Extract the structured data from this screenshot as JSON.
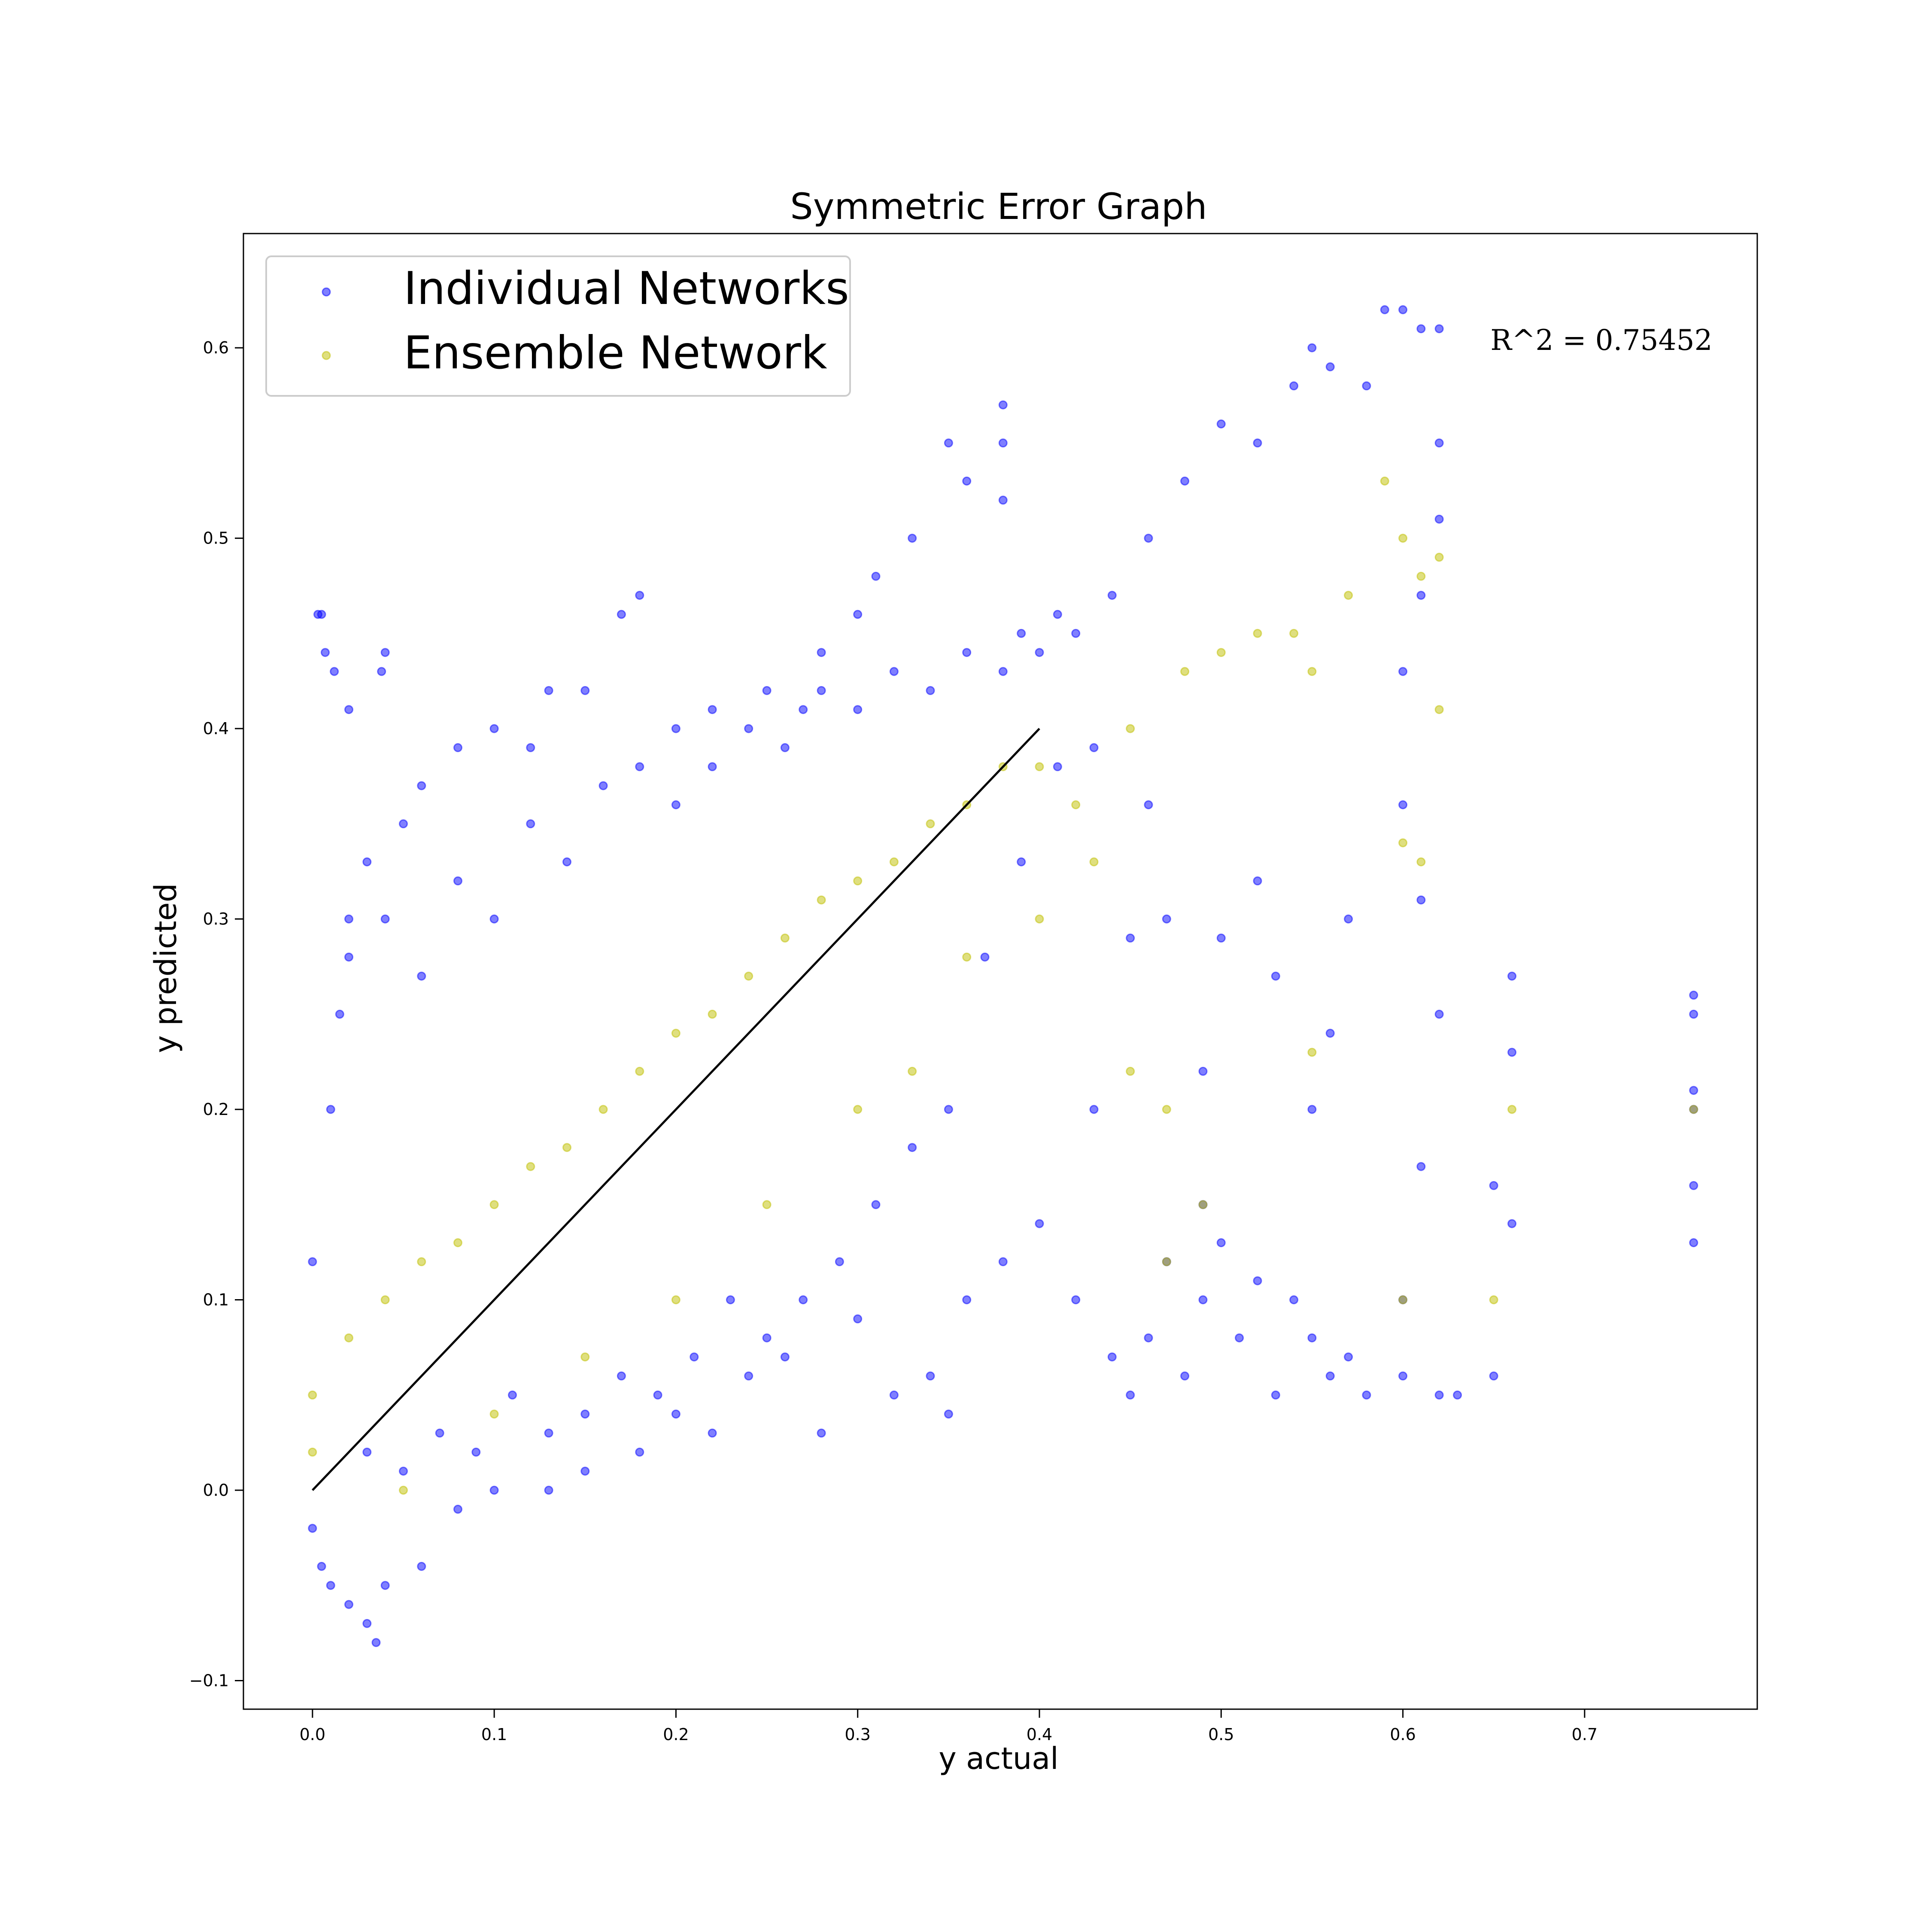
{
  "chart_data": {
    "type": "scatter",
    "title": "Symmetric Error Graph",
    "xlabel": "y actual",
    "ylabel": "y predicted",
    "xlim": [
      -0.038,
      0.795
    ],
    "ylim": [
      -0.115,
      0.66
    ],
    "x_ticks": [
      0.0,
      0.1,
      0.2,
      0.3,
      0.4,
      0.5,
      0.6,
      0.7
    ],
    "x_tick_labels": [
      "0.0",
      "0.1",
      "0.2",
      "0.3",
      "0.4",
      "0.5",
      "0.6",
      "0.7"
    ],
    "y_ticks": [
      -0.1,
      0.0,
      0.1,
      0.2,
      0.3,
      0.4,
      0.5,
      0.6
    ],
    "y_tick_labels": [
      "−0.1",
      "0.0",
      "0.1",
      "0.2",
      "0.3",
      "0.4",
      "0.5",
      "0.6"
    ],
    "grid": false,
    "legend_position": "top-left",
    "annotation": "R^2 = 0.75452",
    "identity_line": {
      "x": [
        0.0,
        0.4
      ],
      "y": [
        0.0,
        0.4
      ],
      "color": "#000000"
    },
    "series": [
      {
        "name": "Individual Networks",
        "color": "#0000ff",
        "alpha": 0.5,
        "points": [
          [
            0.003,
            0.46
          ],
          [
            0.005,
            0.46
          ],
          [
            0.007,
            0.44
          ],
          [
            0.012,
            0.43
          ],
          [
            0.04,
            0.44
          ],
          [
            0.038,
            0.43
          ],
          [
            0.02,
            0.41
          ],
          [
            0.0,
            0.12
          ],
          [
            0.01,
            0.2
          ],
          [
            0.015,
            0.25
          ],
          [
            0.02,
            0.3
          ],
          [
            0.03,
            0.33
          ],
          [
            0.05,
            0.35
          ],
          [
            0.06,
            0.37
          ],
          [
            0.08,
            0.39
          ],
          [
            0.1,
            0.4
          ],
          [
            0.12,
            0.39
          ],
          [
            0.13,
            0.42
          ],
          [
            0.15,
            0.42
          ],
          [
            0.17,
            0.46
          ],
          [
            0.18,
            0.47
          ],
          [
            0.2,
            0.4
          ],
          [
            0.22,
            0.41
          ],
          [
            0.25,
            0.42
          ],
          [
            0.27,
            0.41
          ],
          [
            0.28,
            0.44
          ],
          [
            0.3,
            0.46
          ],
          [
            0.31,
            0.48
          ],
          [
            0.33,
            0.5
          ],
          [
            0.35,
            0.55
          ],
          [
            0.36,
            0.53
          ],
          [
            0.38,
            0.57
          ],
          [
            0.38,
            0.55
          ],
          [
            0.38,
            0.52
          ],
          [
            0.4,
            0.44
          ],
          [
            0.42,
            0.45
          ],
          [
            0.44,
            0.47
          ],
          [
            0.46,
            0.5
          ],
          [
            0.48,
            0.53
          ],
          [
            0.5,
            0.56
          ],
          [
            0.52,
            0.55
          ],
          [
            0.54,
            0.58
          ],
          [
            0.55,
            0.6
          ],
          [
            0.56,
            0.59
          ],
          [
            0.58,
            0.58
          ],
          [
            0.59,
            0.62
          ],
          [
            0.6,
            0.62
          ],
          [
            0.61,
            0.61
          ],
          [
            0.62,
            0.61
          ],
          [
            0.62,
            0.55
          ],
          [
            0.62,
            0.51
          ],
          [
            0.61,
            0.47
          ],
          [
            0.6,
            0.43
          ],
          [
            0.6,
            0.36
          ],
          [
            0.61,
            0.31
          ],
          [
            0.62,
            0.25
          ],
          [
            0.57,
            0.3
          ],
          [
            0.56,
            0.24
          ],
          [
            0.55,
            0.2
          ],
          [
            0.53,
            0.27
          ],
          [
            0.52,
            0.32
          ],
          [
            0.5,
            0.29
          ],
          [
            0.49,
            0.22
          ],
          [
            0.49,
            0.15
          ],
          [
            0.49,
            0.1
          ],
          [
            0.5,
            0.13
          ],
          [
            0.51,
            0.08
          ],
          [
            0.52,
            0.11
          ],
          [
            0.53,
            0.05
          ],
          [
            0.54,
            0.1
          ],
          [
            0.55,
            0.08
          ],
          [
            0.56,
            0.06
          ],
          [
            0.57,
            0.07
          ],
          [
            0.58,
            0.05
          ],
          [
            0.6,
            0.06
          ],
          [
            0.6,
            0.1
          ],
          [
            0.61,
            0.17
          ],
          [
            0.62,
            0.05
          ],
          [
            0.63,
            0.05
          ],
          [
            0.65,
            0.06
          ],
          [
            0.65,
            0.16
          ],
          [
            0.66,
            0.27
          ],
          [
            0.66,
            0.23
          ],
          [
            0.66,
            0.14
          ],
          [
            0.76,
            0.26
          ],
          [
            0.76,
            0.25
          ],
          [
            0.76,
            0.21
          ],
          [
            0.76,
            0.2
          ],
          [
            0.76,
            0.16
          ],
          [
            0.76,
            0.13
          ],
          [
            0.0,
            -0.02
          ],
          [
            0.005,
            -0.04
          ],
          [
            0.01,
            -0.05
          ],
          [
            0.02,
            -0.06
          ],
          [
            0.03,
            -0.07
          ],
          [
            0.035,
            -0.08
          ],
          [
            0.04,
            -0.05
          ],
          [
            0.06,
            -0.04
          ],
          [
            0.08,
            -0.01
          ],
          [
            0.1,
            0.0
          ],
          [
            0.13,
            0.0
          ],
          [
            0.15,
            0.01
          ],
          [
            0.18,
            0.02
          ],
          [
            0.2,
            0.04
          ],
          [
            0.22,
            0.03
          ],
          [
            0.24,
            0.06
          ],
          [
            0.26,
            0.07
          ],
          [
            0.28,
            0.03
          ],
          [
            0.3,
            0.09
          ],
          [
            0.32,
            0.05
          ],
          [
            0.34,
            0.06
          ],
          [
            0.35,
            0.04
          ],
          [
            0.36,
            0.1
          ],
          [
            0.38,
            0.12
          ],
          [
            0.4,
            0.14
          ],
          [
            0.42,
            0.1
          ],
          [
            0.44,
            0.07
          ],
          [
            0.45,
            0.05
          ],
          [
            0.46,
            0.08
          ],
          [
            0.47,
            0.12
          ],
          [
            0.48,
            0.06
          ],
          [
            0.43,
            0.2
          ],
          [
            0.45,
            0.29
          ],
          [
            0.47,
            0.3
          ],
          [
            0.46,
            0.36
          ],
          [
            0.43,
            0.39
          ],
          [
            0.41,
            0.38
          ],
          [
            0.39,
            0.33
          ],
          [
            0.37,
            0.28
          ],
          [
            0.35,
            0.2
          ],
          [
            0.33,
            0.18
          ],
          [
            0.31,
            0.15
          ],
          [
            0.29,
            0.12
          ],
          [
            0.27,
            0.1
          ],
          [
            0.25,
            0.08
          ],
          [
            0.23,
            0.1
          ],
          [
            0.21,
            0.07
          ],
          [
            0.19,
            0.05
          ],
          [
            0.17,
            0.06
          ],
          [
            0.15,
            0.04
          ],
          [
            0.13,
            0.03
          ],
          [
            0.11,
            0.05
          ],
          [
            0.09,
            0.02
          ],
          [
            0.07,
            0.03
          ],
          [
            0.05,
            0.01
          ],
          [
            0.03,
            0.02
          ],
          [
            0.02,
            0.28
          ],
          [
            0.04,
            0.3
          ],
          [
            0.06,
            0.27
          ],
          [
            0.08,
            0.32
          ],
          [
            0.1,
            0.3
          ],
          [
            0.12,
            0.35
          ],
          [
            0.14,
            0.33
          ],
          [
            0.16,
            0.37
          ],
          [
            0.18,
            0.38
          ],
          [
            0.2,
            0.36
          ],
          [
            0.22,
            0.38
          ],
          [
            0.24,
            0.4
          ],
          [
            0.26,
            0.39
          ],
          [
            0.28,
            0.42
          ],
          [
            0.3,
            0.41
          ],
          [
            0.32,
            0.43
          ],
          [
            0.34,
            0.42
          ],
          [
            0.36,
            0.44
          ],
          [
            0.38,
            0.43
          ],
          [
            0.39,
            0.45
          ],
          [
            0.41,
            0.46
          ]
        ]
      },
      {
        "name": "Ensemble Network",
        "color": "#bfbf00",
        "alpha": 0.5,
        "points": [
          [
            0.0,
            0.05
          ],
          [
            0.0,
            0.02
          ],
          [
            0.02,
            0.08
          ],
          [
            0.04,
            0.1
          ],
          [
            0.06,
            0.12
          ],
          [
            0.08,
            0.13
          ],
          [
            0.1,
            0.15
          ],
          [
            0.12,
            0.17
          ],
          [
            0.14,
            0.18
          ],
          [
            0.16,
            0.2
          ],
          [
            0.18,
            0.22
          ],
          [
            0.2,
            0.24
          ],
          [
            0.22,
            0.25
          ],
          [
            0.24,
            0.27
          ],
          [
            0.26,
            0.29
          ],
          [
            0.28,
            0.31
          ],
          [
            0.3,
            0.32
          ],
          [
            0.32,
            0.33
          ],
          [
            0.34,
            0.35
          ],
          [
            0.36,
            0.36
          ],
          [
            0.38,
            0.38
          ],
          [
            0.4,
            0.38
          ],
          [
            0.42,
            0.36
          ],
          [
            0.45,
            0.4
          ],
          [
            0.48,
            0.43
          ],
          [
            0.5,
            0.44
          ],
          [
            0.52,
            0.45
          ],
          [
            0.54,
            0.45
          ],
          [
            0.55,
            0.43
          ],
          [
            0.57,
            0.47
          ],
          [
            0.59,
            0.53
          ],
          [
            0.6,
            0.5
          ],
          [
            0.61,
            0.48
          ],
          [
            0.62,
            0.49
          ],
          [
            0.62,
            0.41
          ],
          [
            0.6,
            0.34
          ],
          [
            0.61,
            0.33
          ],
          [
            0.55,
            0.23
          ],
          [
            0.65,
            0.1
          ],
          [
            0.66,
            0.2
          ],
          [
            0.76,
            0.2
          ],
          [
            0.6,
            0.1
          ],
          [
            0.05,
            0.0
          ],
          [
            0.1,
            0.04
          ],
          [
            0.15,
            0.07
          ],
          [
            0.2,
            0.1
          ],
          [
            0.25,
            0.15
          ],
          [
            0.3,
            0.2
          ],
          [
            0.33,
            0.22
          ],
          [
            0.36,
            0.28
          ],
          [
            0.4,
            0.3
          ],
          [
            0.43,
            0.33
          ],
          [
            0.45,
            0.22
          ],
          [
            0.47,
            0.2
          ],
          [
            0.49,
            0.15
          ],
          [
            0.47,
            0.12
          ]
        ]
      }
    ]
  }
}
